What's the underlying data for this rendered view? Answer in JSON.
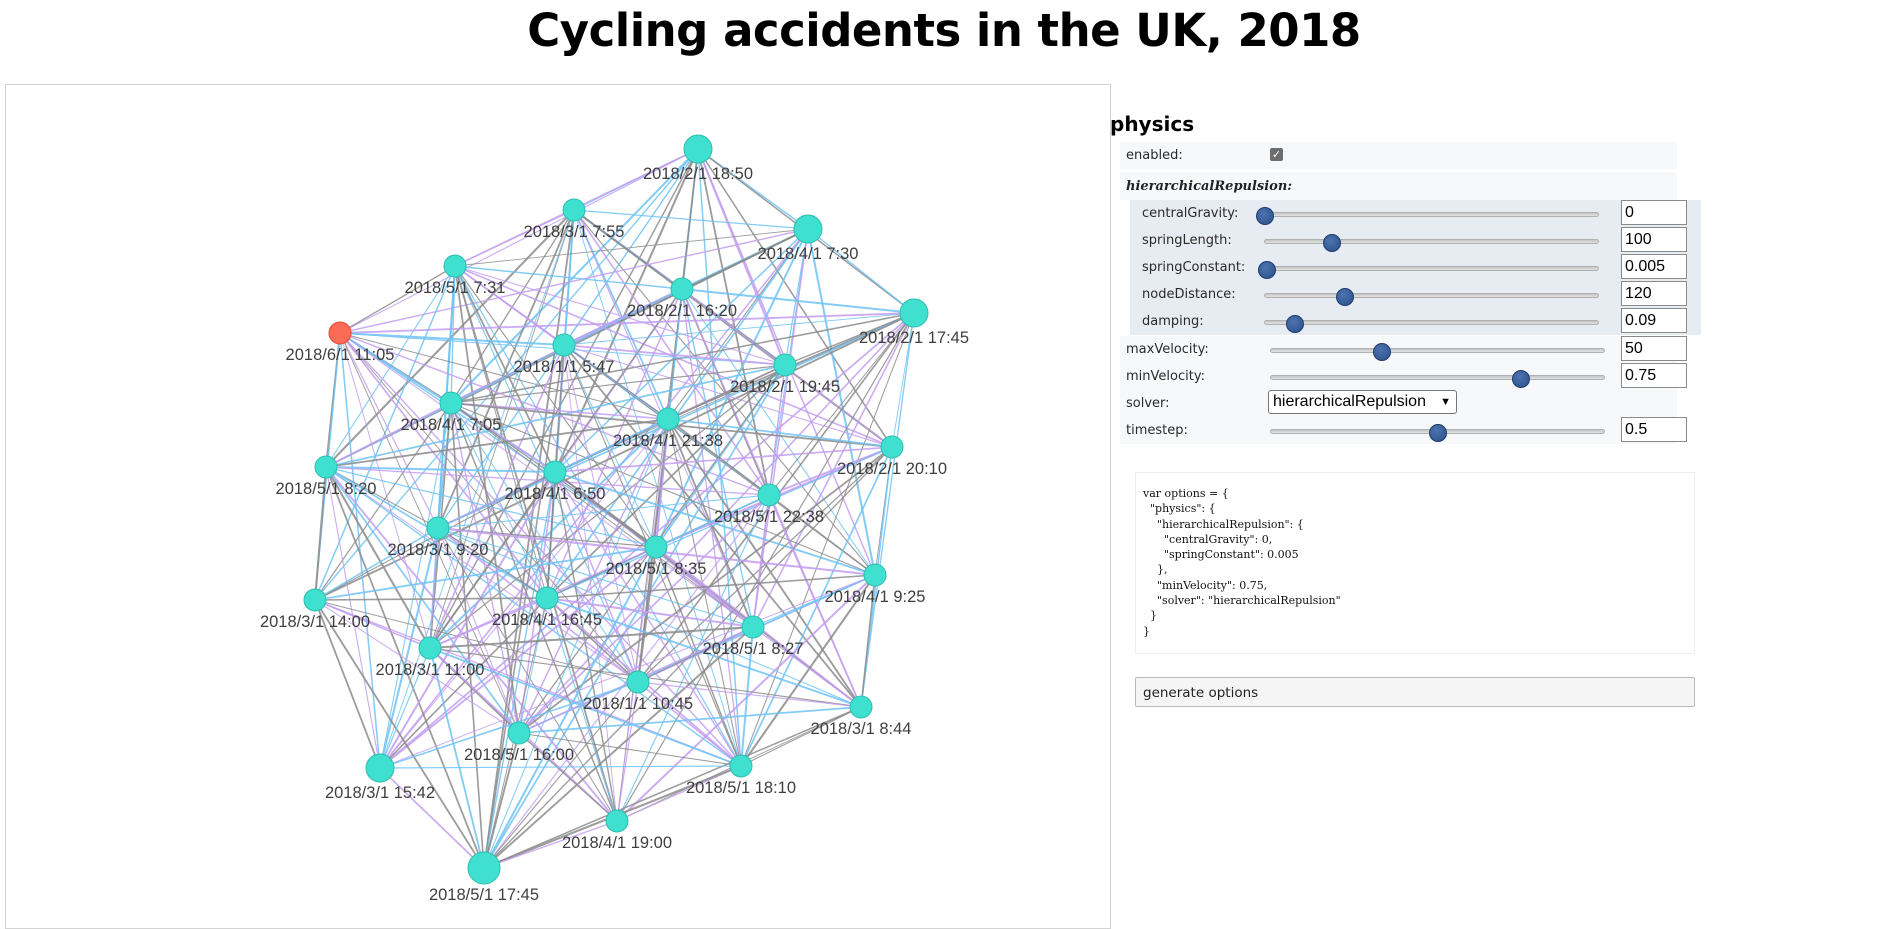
{
  "title": "Cycling accidents in the UK, 2018",
  "graph": {
    "node_color": "#40e0d0",
    "highlight_color": "#fb6b55",
    "edge_colors": [
      "#8c8c8c",
      "#6ec3f4",
      "#c39ef0"
    ],
    "nodes": [
      {
        "id": 0,
        "label": "2018/2/1 18:50"
      },
      {
        "id": 1,
        "label": "2018/3/1 7:55"
      },
      {
        "id": 2,
        "label": "2018/4/1 7:30"
      },
      {
        "id": 3,
        "label": "2018/5/1 7:31"
      },
      {
        "id": 4,
        "label": "2018/2/1 16:20"
      },
      {
        "id": 5,
        "label": "2018/2/1 17:45"
      },
      {
        "id": 6,
        "label": "2018/6/1 11:05"
      },
      {
        "id": 7,
        "label": "2018/1/1 5:47"
      },
      {
        "id": 8,
        "label": "2018/2/1 19:45"
      },
      {
        "id": 9,
        "label": "2018/4/1 7:05"
      },
      {
        "id": 10,
        "label": "2018/4/1 21:38"
      },
      {
        "id": 11,
        "label": "2018/5/1 8:20"
      },
      {
        "id": 12,
        "label": "2018/4/1 6:50"
      },
      {
        "id": 13,
        "label": "2018/2/1 20:10"
      },
      {
        "id": 14,
        "label": "2018/5/1 22:38"
      },
      {
        "id": 15,
        "label": "2018/3/1 9:20"
      },
      {
        "id": 16,
        "label": "2018/5/1 8:35"
      },
      {
        "id": 17,
        "label": "2018/4/1 9:25"
      },
      {
        "id": 18,
        "label": "2018/3/1 14:00"
      },
      {
        "id": 19,
        "label": "2018/4/1 16:45"
      },
      {
        "id": 20,
        "label": "2018/5/1 8:27"
      },
      {
        "id": 21,
        "label": "2018/3/1 11:00"
      },
      {
        "id": 22,
        "label": "2018/1/1 10:45"
      },
      {
        "id": 23,
        "label": "2018/3/1 8:44"
      },
      {
        "id": 24,
        "label": "2018/5/1 16:00"
      },
      {
        "id": 25,
        "label": "2018/3/1 15:42"
      },
      {
        "id": 26,
        "label": "2018/5/1 18:10"
      },
      {
        "id": 27,
        "label": "2018/4/1 19:00"
      },
      {
        "id": 28,
        "label": "2018/5/1 17:45"
      }
    ],
    "highlighted_node": 6
  },
  "config": {
    "heading": "physics",
    "enabled_label": "enabled:",
    "enabled_checked": true,
    "section_label": "hierarchicalRepulsion:",
    "central_gravity_label": "centralGravity:",
    "central_gravity_value": "0",
    "central_gravity_fraction": 0,
    "spring_length_label": "springLength:",
    "spring_length_value": "100",
    "spring_length_fraction": 0.2,
    "spring_constant_label": "springConstant:",
    "spring_constant_value": "0.005",
    "spring_constant_fraction": 0.005,
    "node_distance_label": "nodeDistance:",
    "node_distance_value": "120",
    "node_distance_fraction": 0.24,
    "damping_label": "damping:",
    "damping_value": "0.09",
    "damping_fraction": 0.09,
    "max_velocity_label": "maxVelocity:",
    "max_velocity_value": "50",
    "max_velocity_fraction": 0.333,
    "min_velocity_label": "minVelocity:",
    "min_velocity_value": "0.75",
    "min_velocity_fraction": 0.75,
    "solver_label": "solver:",
    "solver_value": "hierarchicalRepulsion",
    "timestep_label": "timestep:",
    "timestep_value": "0.5",
    "timestep_fraction": 0.5
  },
  "options_code": "var options = {\n  \"physics\": {\n    \"hierarchicalRepulsion\": {\n      \"centralGravity\": 0,\n      \"springConstant\": 0.005\n    },\n    \"minVelocity\": 0.75,\n    \"solver\": \"hierarchicalRepulsion\"\n  }\n}",
  "generate_button_label": "generate options"
}
